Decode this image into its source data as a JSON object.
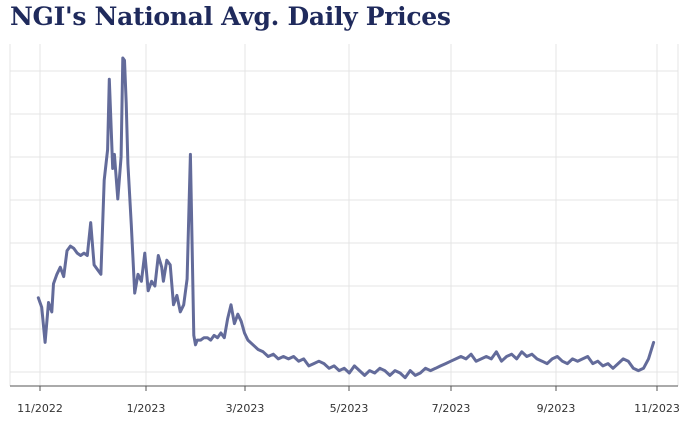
{
  "title": "NGI's National Avg. Daily Prices",
  "chart_data": {
    "type": "line",
    "title": "NGI's National Avg. Daily Prices",
    "xlabel": "",
    "ylabel": "",
    "x_tick_labels": [
      "11/2022",
      "1/2023",
      "3/2023",
      "5/2023",
      "7/2023",
      "9/2023",
      "11/2023"
    ],
    "y_ticks_labeled": false,
    "grid": true,
    "line_color": "#636b9a",
    "grid_color": "#e4e4e4",
    "series": [
      {
        "x": [
          "2022-10-31",
          "2022-11-02",
          "2022-11-04",
          "2022-11-06",
          "2022-11-08",
          "2022-11-09",
          "2022-11-11",
          "2022-11-13",
          "2022-11-15",
          "2022-11-17",
          "2022-11-19",
          "2022-11-21",
          "2022-11-23",
          "2022-11-25",
          "2022-11-27",
          "2022-11-29",
          "2022-12-01",
          "2022-12-03",
          "2022-12-05",
          "2022-12-07",
          "2022-12-09",
          "2022-12-11",
          "2022-12-12",
          "2022-12-14",
          "2022-12-15",
          "2022-12-17",
          "2022-12-19",
          "2022-12-20",
          "2022-12-21",
          "2022-12-22",
          "2022-12-23",
          "2022-12-25",
          "2022-12-27",
          "2022-12-29",
          "2022-12-31",
          "2023-01-02",
          "2023-01-04",
          "2023-01-06",
          "2023-01-08",
          "2023-01-10",
          "2023-01-12",
          "2023-01-13",
          "2023-01-15",
          "2023-01-17",
          "2023-01-19",
          "2023-01-21",
          "2023-01-23",
          "2023-01-25",
          "2023-01-27",
          "2023-01-29",
          "2023-01-31",
          "2023-02-01",
          "2023-02-02",
          "2023-02-04",
          "2023-02-06",
          "2023-02-08",
          "2023-02-10",
          "2023-02-12",
          "2023-02-14",
          "2023-02-16",
          "2023-02-18",
          "2023-02-20",
          "2023-02-22",
          "2023-02-24",
          "2023-02-26",
          "2023-02-28",
          "2023-03-02",
          "2023-03-04",
          "2023-03-07",
          "2023-03-10",
          "2023-03-13",
          "2023-03-16",
          "2023-03-19",
          "2023-03-22",
          "2023-03-25",
          "2023-03-28",
          "2023-03-31",
          "2023-04-03",
          "2023-04-06",
          "2023-04-09",
          "2023-04-12",
          "2023-04-15",
          "2023-04-18",
          "2023-04-21",
          "2023-04-24",
          "2023-04-27",
          "2023-04-30",
          "2023-05-03",
          "2023-05-06",
          "2023-05-09",
          "2023-05-12",
          "2023-05-15",
          "2023-05-18",
          "2023-05-21",
          "2023-05-24",
          "2023-05-27",
          "2023-05-30",
          "2023-06-02",
          "2023-06-05",
          "2023-06-08",
          "2023-06-11",
          "2023-06-14",
          "2023-06-17",
          "2023-06-20",
          "2023-06-23",
          "2023-06-26",
          "2023-06-29",
          "2023-07-02",
          "2023-07-05",
          "2023-07-08",
          "2023-07-11",
          "2023-07-14",
          "2023-07-17",
          "2023-07-20",
          "2023-07-23",
          "2023-07-26",
          "2023-07-29",
          "2023-08-01",
          "2023-08-04",
          "2023-08-07",
          "2023-08-10",
          "2023-08-13",
          "2023-08-16",
          "2023-08-19",
          "2023-08-22",
          "2023-08-25",
          "2023-08-28",
          "2023-08-31",
          "2023-09-03",
          "2023-09-06",
          "2023-09-09",
          "2023-09-12",
          "2023-09-15",
          "2023-09-18",
          "2023-09-21",
          "2023-09-24",
          "2023-09-27",
          "2023-09-30",
          "2023-10-03",
          "2023-10-06",
          "2023-10-09",
          "2023-10-12",
          "2023-10-15",
          "2023-10-18",
          "2023-10-21",
          "2023-10-24",
          "2023-10-27",
          "2023-10-30"
        ],
        "y": [
          5.1,
          4.7,
          3.2,
          4.9,
          4.5,
          5.7,
          6.1,
          6.4,
          6.0,
          7.1,
          7.3,
          7.2,
          7.0,
          6.9,
          7.0,
          6.9,
          8.3,
          6.5,
          6.3,
          6.1,
          10.1,
          11.4,
          14.4,
          10.6,
          11.2,
          9.3,
          11.1,
          15.3,
          15.2,
          13.4,
          10.8,
          8.2,
          5.3,
          6.1,
          5.8,
          7.0,
          5.4,
          5.8,
          5.6,
          6.9,
          6.4,
          5.8,
          6.7,
          6.5,
          4.8,
          5.2,
          4.5,
          4.8,
          5.9,
          11.2,
          3.5,
          3.1,
          3.3,
          3.3,
          3.4,
          3.4,
          3.3,
          3.5,
          3.4,
          3.6,
          3.4,
          4.2,
          4.8,
          4.0,
          4.4,
          4.1,
          3.6,
          3.3,
          3.1,
          2.9,
          2.8,
          2.6,
          2.7,
          2.5,
          2.6,
          2.5,
          2.6,
          2.4,
          2.5,
          2.2,
          2.3,
          2.4,
          2.3,
          2.1,
          2.2,
          2.0,
          2.1,
          1.9,
          2.2,
          2.0,
          1.8,
          2.0,
          1.9,
          2.1,
          2.0,
          1.8,
          2.0,
          1.9,
          1.7,
          2.0,
          1.8,
          1.9,
          2.1,
          2.0,
          2.1,
          2.2,
          2.3,
          2.4,
          2.5,
          2.6,
          2.5,
          2.7,
          2.4,
          2.5,
          2.6,
          2.5,
          2.8,
          2.4,
          2.6,
          2.7,
          2.5,
          2.8,
          2.6,
          2.7,
          2.5,
          2.4,
          2.3,
          2.5,
          2.6,
          2.4,
          2.3,
          2.5,
          2.4,
          2.5,
          2.6,
          2.3,
          2.4,
          2.2,
          2.3,
          2.1,
          2.3,
          2.5,
          2.4,
          2.1,
          2.0,
          2.1,
          2.5,
          3.2
        ]
      }
    ]
  }
}
